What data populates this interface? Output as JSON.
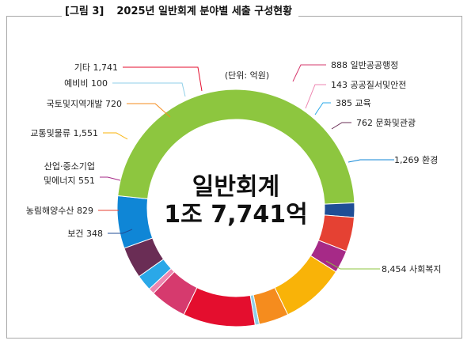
{
  "caption": {
    "tag": "[그림 3]",
    "title": "2025년 일반회계 분야별 세출 구성현황"
  },
  "chart_data": {
    "type": "pie",
    "variant": "donut",
    "unit_label": "(단위: 억원)",
    "center_label": [
      "일반회계",
      "1조 7,741억"
    ],
    "total": 17741,
    "slices": [
      {
        "name": "일반공공행정",
        "value": 888,
        "label": "888 일반공공행정",
        "color": "#d63a6e"
      },
      {
        "name": "공공질서및안전",
        "value": 143,
        "label": "143 공공질서및안전",
        "color": "#ee86b0"
      },
      {
        "name": "교육",
        "value": 385,
        "label": "385 교육",
        "color": "#2aa8e8"
      },
      {
        "name": "문화및관광",
        "value": 762,
        "label": "762 문화및관광",
        "color": "#6a2d55"
      },
      {
        "name": "환경",
        "value": 1269,
        "label": "1,269 환경",
        "color": "#0f86d6"
      },
      {
        "name": "사회복지",
        "value": 8454,
        "label": "8,454 사회복지",
        "color": "#8dc63f"
      },
      {
        "name": "보건",
        "value": 348,
        "label": "보건 348",
        "color": "#1f4e96"
      },
      {
        "name": "농림해양수산",
        "value": 829,
        "label": "농림해양수산 829",
        "color": "#e54133"
      },
      {
        "name": "산업·중소기업 및에너지",
        "value": 551,
        "label": [
          "산업·중소기업",
          "및에너지 551"
        ],
        "color": "#a62a87"
      },
      {
        "name": "교통및물류",
        "value": 1551,
        "label": "교통및물류 1,551",
        "color": "#f9b308"
      },
      {
        "name": "국토및지역개발",
        "value": 720,
        "label": "국토및지역개발 720",
        "color": "#f58c1e"
      },
      {
        "name": "예비비",
        "value": 100,
        "label": "예비비 100",
        "color": "#8fcfe8"
      },
      {
        "name": "기타",
        "value": 1741,
        "label": "기타 1,741",
        "color": "#e40e2e"
      }
    ]
  }
}
